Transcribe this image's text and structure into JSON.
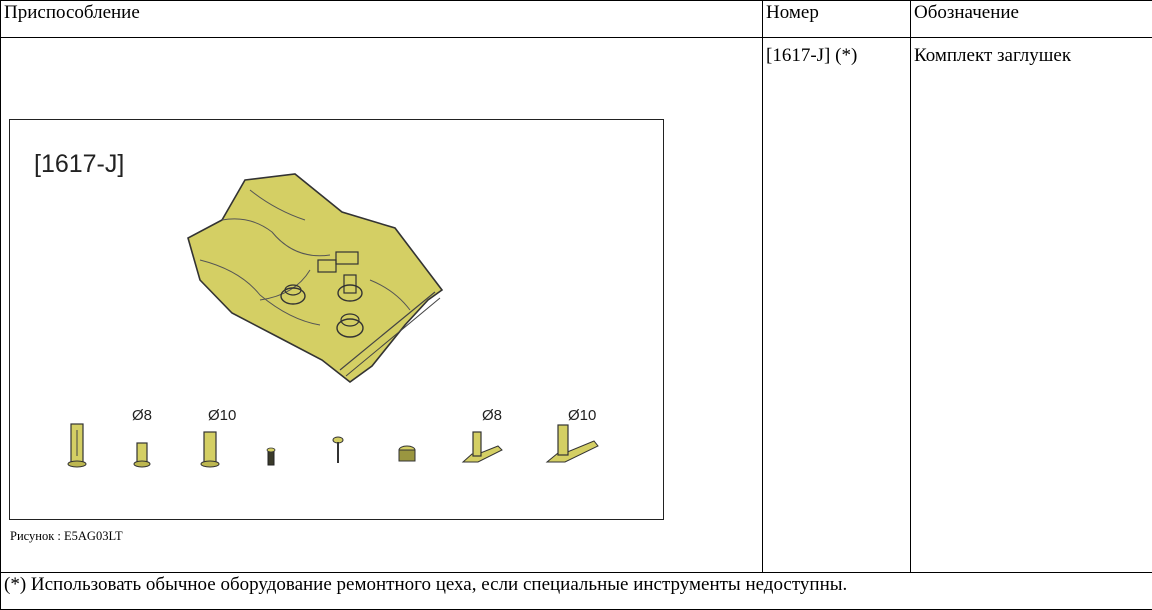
{
  "table": {
    "headers": {
      "fixture": "Приспособление",
      "number": "Номер",
      "description": "Обозначение"
    },
    "row": {
      "number": "[1617-J] (*)",
      "description": "Комплект заглушек"
    }
  },
  "figure": {
    "label": "[1617-J]",
    "caption": "Рисунок : E5AG03LT",
    "diameter_labels": [
      "Ø8",
      "Ø10",
      "Ø8",
      "Ø10"
    ],
    "colors": {
      "plug_fill": "#d4cf64",
      "outline": "#333333"
    }
  },
  "footnote": "(*) Использовать обычное оборудование ремонтного цеха, если специальные инструменты недоступны."
}
